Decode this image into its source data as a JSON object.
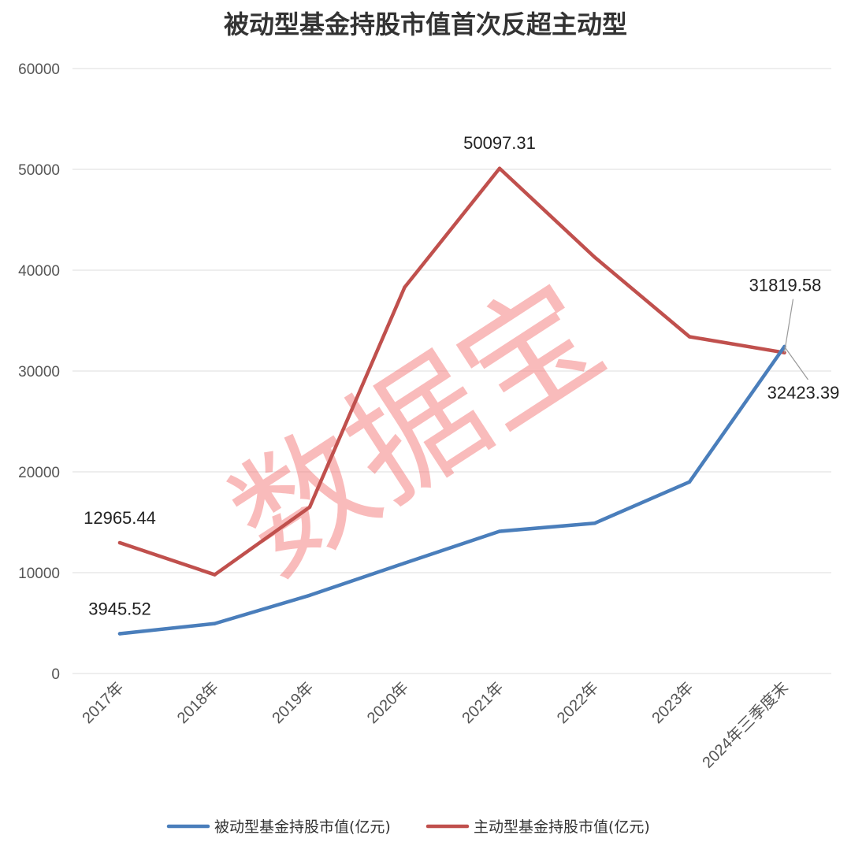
{
  "chart_data": {
    "type": "line",
    "title": "被动型基金持股市值首次反超主动型",
    "categories": [
      "2017年",
      "2018年",
      "2019年",
      "2020年",
      "2021年",
      "2022年",
      "2023年",
      "2024年三季度末"
    ],
    "ylim": [
      0,
      60000
    ],
    "yticks": [
      "0",
      "10000",
      "20000",
      "30000",
      "40000",
      "50000",
      "60000"
    ],
    "grid": true,
    "legend_position": "bottom",
    "series": [
      {
        "name": "被动型基金持股市值(亿元)",
        "color": "#4a7ebb",
        "values": [
          3945.52,
          4950,
          7750,
          10950,
          14100,
          14900,
          19000,
          32423.39
        ],
        "labels": [
          "3945.52",
          "",
          "",
          "",
          "",
          "",
          "",
          "32423.39"
        ]
      },
      {
        "name": "主动型基金持股市值(亿元)",
        "color": "#c0504d",
        "values": [
          12965.44,
          9800,
          16500,
          38300,
          50097.31,
          41300,
          33400,
          31819.58
        ],
        "labels": [
          "12965.44",
          "",
          "",
          "",
          "50097.31",
          "",
          "",
          "31819.58"
        ]
      }
    ]
  },
  "watermark": "数据宝"
}
